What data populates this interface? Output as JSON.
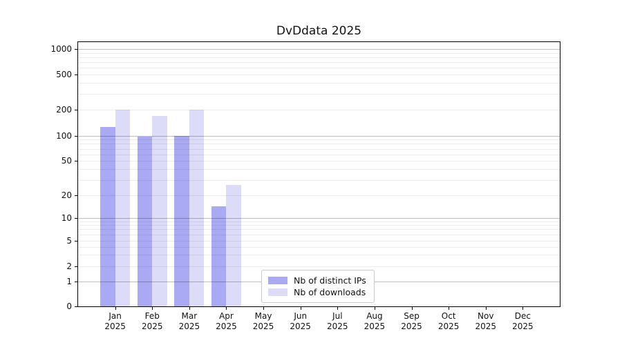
{
  "chart_data": {
    "type": "bar",
    "title": "DvDdata 2025",
    "x_months": [
      "Jan",
      "Feb",
      "Mar",
      "Apr",
      "May",
      "Jun",
      "Jul",
      "Aug",
      "Sep",
      "Oct",
      "Nov",
      "Dec"
    ],
    "x_year": "2025",
    "series": [
      {
        "name": "Nb of distinct IPs",
        "color": "#a9a9f4",
        "values": [
          125,
          97,
          100,
          14,
          0,
          0,
          0,
          0,
          0,
          0,
          0,
          0
        ]
      },
      {
        "name": "Nb of downloads",
        "color": "#dcdcf8",
        "values": [
          200,
          167,
          200,
          26,
          0,
          0,
          0,
          0,
          0,
          0,
          0,
          0
        ]
      }
    ],
    "y_ticks": [
      1000,
      500,
      200,
      100,
      50,
      20,
      10,
      5,
      2,
      1,
      0
    ],
    "y_scale": "symlog",
    "ylim": [
      0,
      1200
    ],
    "grid": true,
    "legend_position": "lower center-left"
  },
  "colors": {
    "major_grid": "rgba(0,0,0,0.26)",
    "minor_grid": "rgba(0,0,0,0.07)",
    "axis": "#000000",
    "background": "#ffffff"
  }
}
